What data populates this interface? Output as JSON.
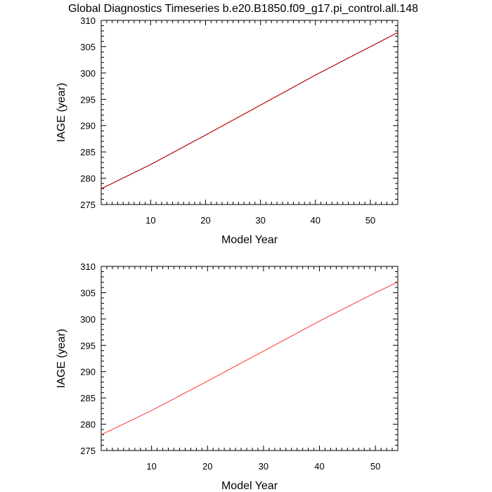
{
  "page_title": "Global Diagnostics Timeseries b.e20.B1850.f09_g17.pi_control.all.148",
  "chart_data": [
    {
      "type": "line",
      "xlabel": "Model Year",
      "ylabel": "IAGE (year)",
      "xlim": [
        1,
        55
      ],
      "ylim": [
        275,
        310
      ],
      "x_ticks": [
        10,
        20,
        30,
        40,
        50
      ],
      "x_tick_labels": [
        "10",
        "20",
        "30",
        "40",
        "50"
      ],
      "y_ticks": [
        275,
        280,
        285,
        290,
        295,
        300,
        305,
        310
      ],
      "y_tick_labels": [
        "275",
        "280",
        "285",
        "290",
        "295",
        "300",
        "305",
        "310"
      ],
      "grid": false,
      "series": [
        {
          "color": "#000000",
          "x": [
            1,
            10,
            20,
            30,
            40,
            50,
            55
          ],
          "y": [
            278.0,
            282.6,
            288.2,
            293.9,
            299.6,
            305.0,
            307.7
          ]
        },
        {
          "color": "#cc0000",
          "x": [
            1,
            10,
            20,
            30,
            40,
            50,
            55
          ],
          "y": [
            278.0,
            282.6,
            288.2,
            293.9,
            299.6,
            305.0,
            307.7
          ]
        }
      ]
    },
    {
      "type": "line",
      "xlabel": "Model Year",
      "ylabel": "IAGE (year)",
      "xlim": [
        1,
        54
      ],
      "ylim": [
        275,
        310
      ],
      "x_ticks": [
        10,
        20,
        30,
        40,
        50
      ],
      "x_tick_labels": [
        "10",
        "20",
        "30",
        "40",
        "50"
      ],
      "y_ticks": [
        275,
        280,
        285,
        290,
        295,
        300,
        305,
        310
      ],
      "y_tick_labels": [
        "275",
        "280",
        "285",
        "290",
        "295",
        "300",
        "305",
        "310"
      ],
      "grid": false,
      "series": [
        {
          "color": "#ff3333",
          "x": [
            1,
            10,
            20,
            30,
            40,
            50,
            54
          ],
          "y": [
            278.0,
            282.6,
            288.2,
            293.9,
            299.6,
            305.0,
            307.0
          ]
        }
      ]
    }
  ]
}
